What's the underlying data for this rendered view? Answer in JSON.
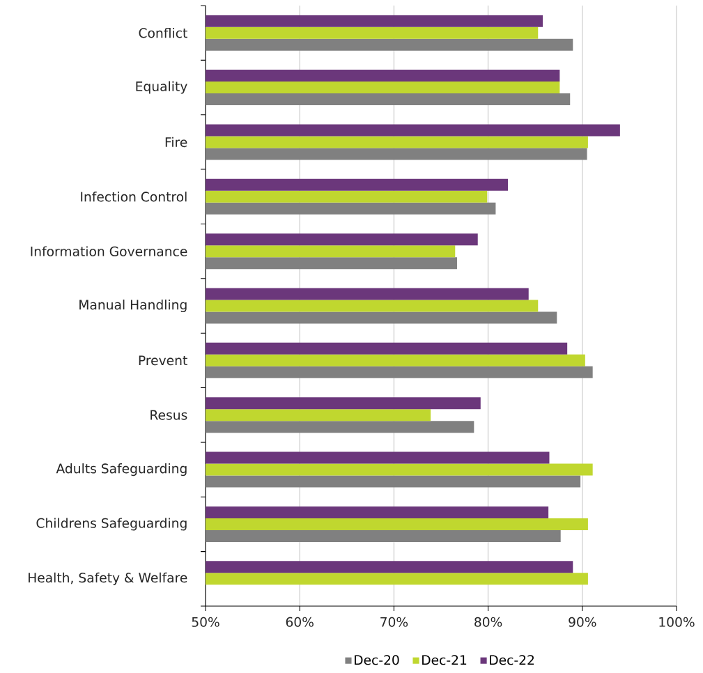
{
  "chart_data": {
    "type": "bar",
    "orientation": "horizontal",
    "categories": [
      "Conflict",
      "Equality",
      "Fire",
      "Infection Control",
      "Information Governance",
      "Manual Handling",
      "Prevent",
      "Resus",
      "Adults Safeguarding",
      "Childrens Safeguarding",
      "Health, Safety & Welfare"
    ],
    "series": [
      {
        "name": "Dec-20",
        "color": "#808080",
        "values": [
          89.0,
          88.7,
          90.5,
          80.8,
          76.7,
          87.3,
          91.1,
          78.5,
          89.8,
          87.7,
          null
        ]
      },
      {
        "name": "Dec-21",
        "color": "#c0d72f",
        "values": [
          85.3,
          87.6,
          90.6,
          79.9,
          76.5,
          85.3,
          90.3,
          73.9,
          91.1,
          90.6,
          90.6
        ]
      },
      {
        "name": "Dec-22",
        "color": "#6b377b",
        "values": [
          85.8,
          87.6,
          94.0,
          82.1,
          78.9,
          84.3,
          88.4,
          79.2,
          86.5,
          86.4,
          89.0
        ]
      }
    ],
    "xlim": [
      50,
      100
    ],
    "xticks": [
      {
        "value": 50,
        "label": "50%"
      },
      {
        "value": 60,
        "label": "60%"
      },
      {
        "value": 70,
        "label": "70%"
      },
      {
        "value": 80,
        "label": "80%"
      },
      {
        "value": 90,
        "label": "90%"
      },
      {
        "value": 100,
        "label": "100%"
      }
    ],
    "grid": "x",
    "legend": "bottom"
  }
}
